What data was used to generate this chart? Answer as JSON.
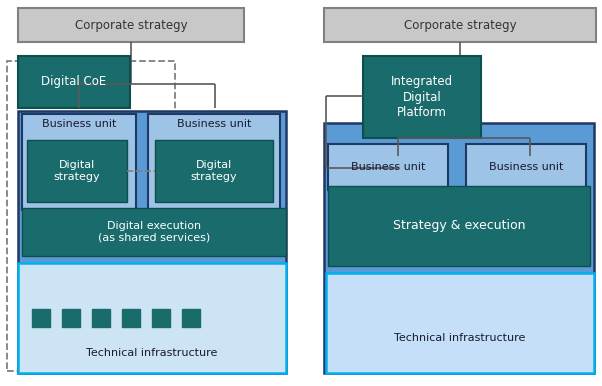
{
  "bg_color": "#ffffff",
  "colors": {
    "corp_fill": "#c8c8c8",
    "corp_edge": "#808080",
    "dark_teal": "#1a6b6b",
    "dark_teal_edge": "#0d4f4f",
    "medium_blue": "#5b9bd5",
    "medium_blue_edge": "#1f3864",
    "light_blue": "#9dc3e6",
    "light_blue_edge": "#1f3864",
    "pale_blue": "#c5dff8",
    "pale_blue_fill": "#cde4f5",
    "teal_border": "#00b0f0",
    "gray_line": "#595959",
    "gray_dashed": "#808080",
    "white": "#ffffff",
    "dark_text": "#333333",
    "white_text": "#ffffff",
    "bu_text": "#1a1a2e"
  },
  "left": {
    "corp_strategy": "Corporate strategy",
    "digital_coe": "Digital CoE",
    "business_unit": "Business unit",
    "digital_strategy": "Digital\nstrategy",
    "digital_execution": "Digital execution\n(as shared services)",
    "tech_infra": "Technical infrastructure"
  },
  "right": {
    "corp_strategy": "Corporate strategy",
    "integrated_platform": "Integrated\nDigital\nPlatform",
    "business_unit": "Business unit",
    "strategy_execution": "Strategy & execution",
    "tech_infra": "Technical infrastructure"
  },
  "layout": {
    "fig_w": 6.02,
    "fig_h": 3.86,
    "dpi": 100
  }
}
